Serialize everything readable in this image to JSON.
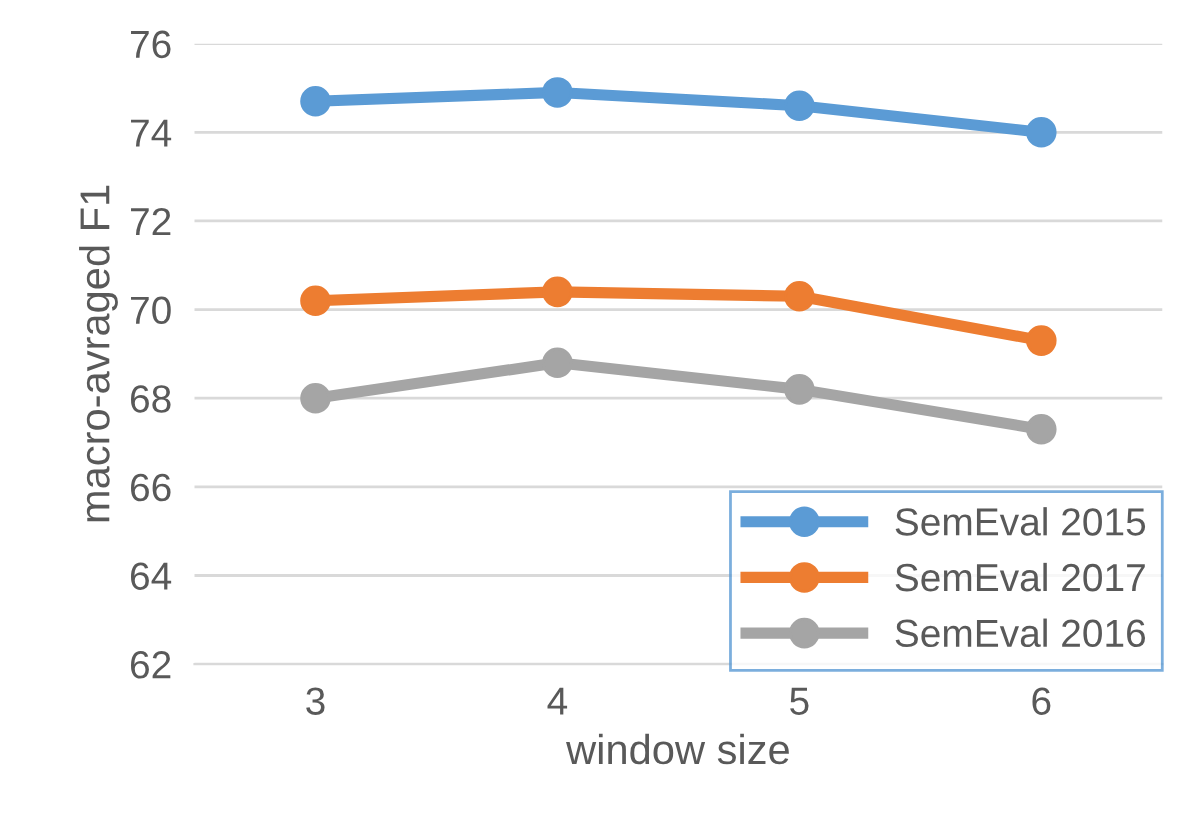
{
  "chart_data": {
    "type": "line",
    "xlabel": "window size",
    "ylabel": "macro-avraged F1",
    "categories": [
      "3",
      "4",
      "5",
      "6"
    ],
    "series": [
      {
        "name": "SemEval 2015",
        "color": "#5b9bd5",
        "values": [
          74.7,
          74.9,
          74.6,
          74.0
        ]
      },
      {
        "name": "SemEval 2017",
        "color": "#ed7d31",
        "values": [
          70.2,
          70.4,
          70.3,
          69.3
        ]
      },
      {
        "name": "SemEval 2016",
        "color": "#a5a5a5",
        "values": [
          68.0,
          68.8,
          68.2,
          67.3
        ]
      }
    ],
    "ylim": [
      62,
      76
    ],
    "yticks": [
      62,
      64,
      66,
      68,
      70,
      72,
      74,
      76
    ],
    "grid": "y",
    "legend": "bottom right",
    "marker": "circle",
    "line_style": "solid"
  }
}
